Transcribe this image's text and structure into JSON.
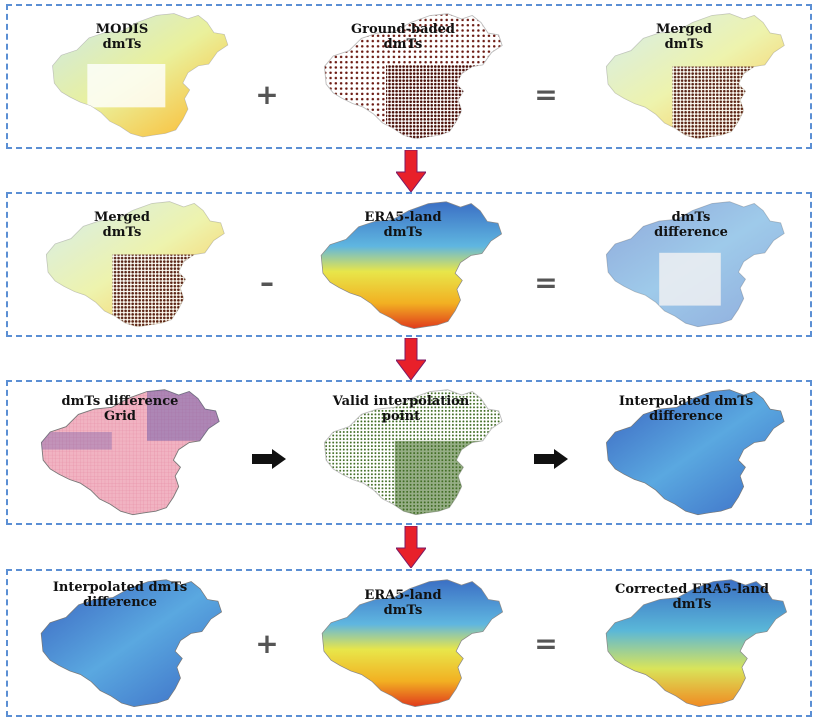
{
  "rows": [
    {
      "panels": [
        {
          "line1": "MODIS",
          "line2": "dmTs"
        },
        {
          "line1": "Ground-baded",
          "line2": "dmTs"
        },
        {
          "line1": "Merged",
          "line2": "dmTs"
        }
      ],
      "ops": [
        "+",
        "="
      ]
    },
    {
      "panels": [
        {
          "line1": "Merged",
          "line2": "dmTs"
        },
        {
          "line1": "ERA5-land",
          "line2": "dmTs"
        },
        {
          "line1": "dmTs",
          "line2": "difference"
        }
      ],
      "ops": [
        "–",
        "="
      ]
    },
    {
      "panels": [
        {
          "line1": "dmTs difference",
          "line2": "Grid"
        },
        {
          "line1": "Valid interpolation",
          "line2": "point"
        },
        {
          "line1": "Interpolated dmTs",
          "line2": "difference"
        }
      ],
      "ops": [
        "arrow",
        "arrow"
      ]
    },
    {
      "panels": [
        {
          "line1": "Interpolated dmTs",
          "line2": "difference"
        },
        {
          "line1": "ERA5-land",
          "line2": "dmTs"
        },
        {
          "line1": "Corrected ERA5-land",
          "line2": "dmTs"
        }
      ],
      "ops": [
        "+",
        "="
      ]
    }
  ],
  "colors": {
    "border": "#5b8fd4",
    "down_arrow": "#e8202a",
    "right_arrow": "#111111"
  }
}
